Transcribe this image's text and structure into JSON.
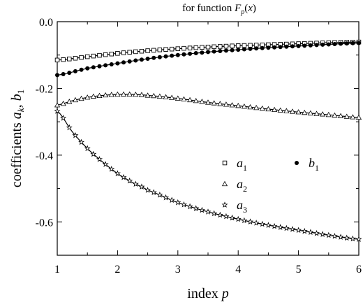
{
  "chart_data": {
    "type": "scatter",
    "title": {
      "prefix": "for function ",
      "main": "F",
      "sub": "p",
      "suffix": "(x)"
    },
    "xlabel": {
      "text": "index ",
      "var": "p"
    },
    "ylabel": {
      "text": "coefficients ",
      "var1": "a",
      "sub1": "k",
      "sep": ", ",
      "var2": "b",
      "sub2": "1"
    },
    "xlim": [
      1,
      6
    ],
    "ylim": [
      -0.7,
      0.0
    ],
    "xticks": [
      "1",
      "2",
      "3",
      "4",
      "5",
      "6"
    ],
    "yticks": [
      "0.0",
      "-0.2",
      "-0.4",
      "-0.6"
    ],
    "grid": false,
    "legend_placement": "middle-right",
    "series": [
      {
        "name": "a1",
        "label_var": "a",
        "label_sub": "1",
        "marker": "open-square",
        "x": [
          1.0,
          1.5,
          2.0,
          2.5,
          3.0,
          3.5,
          4.0,
          4.5,
          5.0,
          5.5,
          6.0
        ],
        "y": [
          -0.115,
          -0.105,
          -0.095,
          -0.087,
          -0.081,
          -0.076,
          -0.072,
          -0.069,
          -0.066,
          -0.063,
          -0.061
        ]
      },
      {
        "name": "b1",
        "label_var": "b",
        "label_sub": "1",
        "marker": "filled-circle",
        "x": [
          1.0,
          1.5,
          2.0,
          2.5,
          3.0,
          3.5,
          4.0,
          4.5,
          5.0,
          5.5,
          6.0
        ],
        "y": [
          -0.16,
          -0.14,
          -0.125,
          -0.111,
          -0.1,
          -0.091,
          -0.084,
          -0.078,
          -0.073,
          -0.068,
          -0.064
        ]
      },
      {
        "name": "a2",
        "label_var": "a",
        "label_sub": "2",
        "marker": "open-triangle",
        "x": [
          1.0,
          1.25,
          1.5,
          1.75,
          2.0,
          2.25,
          2.5,
          3.0,
          3.5,
          4.0,
          4.5,
          5.0,
          5.5,
          6.0
        ],
        "y": [
          -0.25,
          -0.237,
          -0.227,
          -0.221,
          -0.218,
          -0.218,
          -0.221,
          -0.23,
          -0.242,
          -0.252,
          -0.262,
          -0.271,
          -0.279,
          -0.287
        ]
      },
      {
        "name": "a3",
        "label_var": "a",
        "label_sub": "3",
        "marker": "star",
        "x": [
          1.0,
          1.25,
          1.5,
          1.75,
          2.0,
          2.25,
          2.5,
          3.0,
          3.5,
          4.0,
          4.5,
          5.0,
          5.5,
          6.0
        ],
        "y": [
          -0.268,
          -0.33,
          -0.38,
          -0.42,
          -0.455,
          -0.482,
          -0.505,
          -0.542,
          -0.57,
          -0.592,
          -0.61,
          -0.625,
          -0.64,
          -0.652
        ]
      }
    ]
  }
}
